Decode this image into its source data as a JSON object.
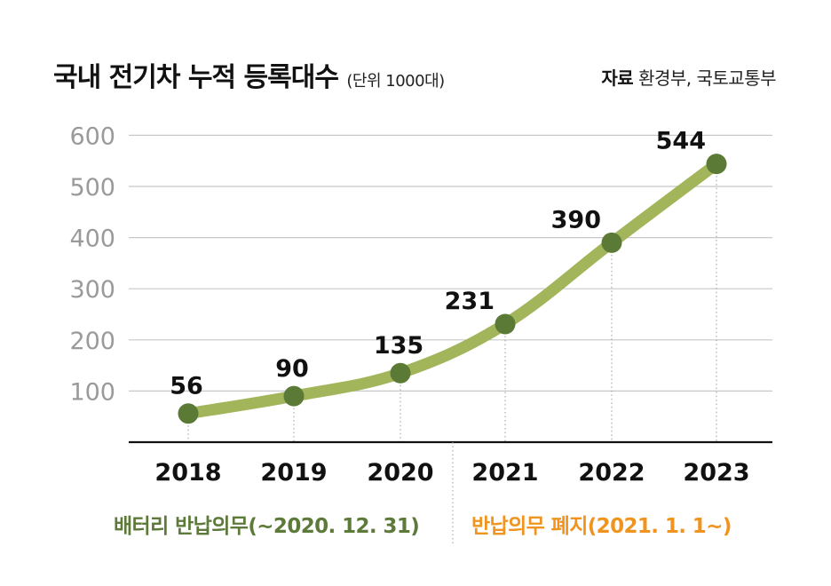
{
  "header": {
    "title": "국내 전기차 누적 등록대수",
    "unit": "(단위 1000대)",
    "source_label": "자료",
    "source": "환경부, 국토교통부"
  },
  "notes": {
    "before": "배터리 반납의무(~2020. 12. 31)",
    "after": "반납의무 폐지(2021. 1. 1~)"
  },
  "colors": {
    "line": "#a3b55a",
    "marker": "#5a7a35",
    "grid": "#c8c8c8",
    "ytick": "#9a9a9a",
    "axis": "#111111",
    "before_note": "#5d7a3a",
    "after_note": "#f0941f"
  },
  "chart_data": {
    "type": "line",
    "categories": [
      "2018",
      "2019",
      "2020",
      "2021",
      "2022",
      "2023"
    ],
    "values": [
      56,
      90,
      135,
      231,
      390,
      544
    ],
    "data_labels": [
      "56",
      "90",
      "135",
      "231",
      "390",
      "544"
    ],
    "yticks": [
      100,
      200,
      300,
      400,
      500,
      600
    ],
    "ylim": [
      0,
      600
    ],
    "grid": true,
    "divider_between": [
      "2020",
      "2021"
    ]
  }
}
